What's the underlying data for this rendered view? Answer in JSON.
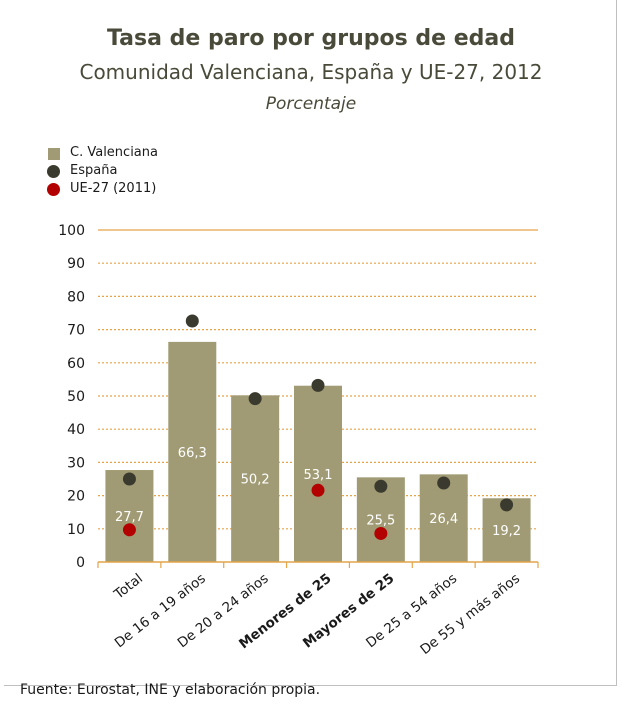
{
  "title": "Tasa de paro por grupos de edad",
  "subtitle": "Comunidad Valenciana, España y UE-27, 2012",
  "units": "Porcentaje",
  "source": "Fuente: Eurostat, INE y elaboración propia.",
  "colors": {
    "bar": "#a09b74",
    "espana": "#3a3a2e",
    "ue": "#b30000",
    "grid": "#e3a44a"
  },
  "legend": [
    {
      "label": "C. Valenciana",
      "shape": "square",
      "color": "#a09b74"
    },
    {
      "label": "España",
      "shape": "circle",
      "color": "#3a3a2e"
    },
    {
      "label": "UE-27 (2011)",
      "shape": "circle",
      "color": "#b30000"
    }
  ],
  "chart_data": {
    "type": "bar",
    "categories": [
      "Total",
      "De 16 a 19 años",
      "De 20 a 24 años",
      "Menores de 25",
      "Mayores de 25",
      "De 25 a 54 años",
      "De 55 y más años"
    ],
    "bold_categories": [
      "Menores de 25",
      "Mayores de 25"
    ],
    "series": [
      {
        "name": "C. Valenciana",
        "kind": "bar",
        "values": [
          27.7,
          66.3,
          50.2,
          53.1,
          25.5,
          26.4,
          19.2
        ]
      },
      {
        "name": "España",
        "kind": "dot",
        "values": [
          25.0,
          72.6,
          49.2,
          53.2,
          22.8,
          23.8,
          17.2
        ]
      },
      {
        "name": "UE-27 (2011)",
        "kind": "dot",
        "values": [
          9.7,
          null,
          null,
          21.6,
          8.6,
          null,
          null
        ]
      }
    ],
    "data_labels": [
      "27,7",
      "66,3",
      "50,2",
      "53,1",
      "25,5",
      "26,4",
      "19,2"
    ],
    "yticks": [
      "0",
      "10",
      "20",
      "30",
      "40",
      "50",
      "60",
      "70",
      "80",
      "90",
      "100"
    ],
    "ylim": [
      0,
      100
    ],
    "grid": true,
    "legend_position": "top-left"
  }
}
